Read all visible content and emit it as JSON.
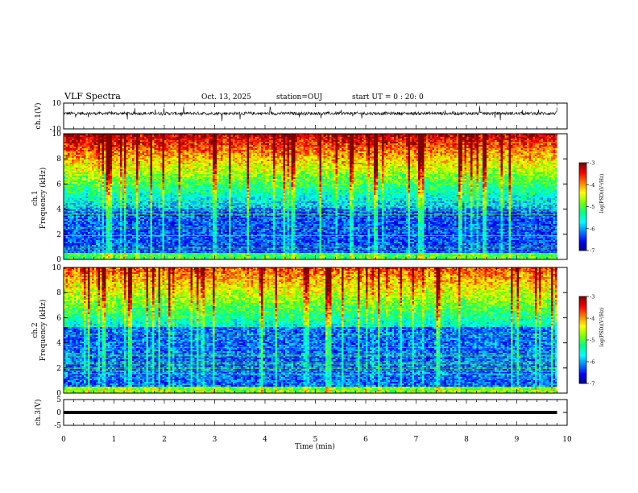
{
  "header": {
    "title": "VLF Spectra",
    "date": "Oct. 13, 2025",
    "station": "station=OUJ",
    "start_ut": "start UT =  0 : 20: 0"
  },
  "chart_data": [
    {
      "type": "line",
      "panel": "ch1-waveform",
      "ylabel": "ch.1(V)",
      "ylim": [
        -10,
        10
      ],
      "yticks": [
        "10",
        "-10"
      ],
      "xlim": [
        0,
        10
      ],
      "baseline": 2,
      "amplitude_spread": 2.5
    },
    {
      "type": "heatmap",
      "panel": "ch1-spectrogram",
      "ylabel": "ch.1\nFrequency (kHz)",
      "ylim": [
        0,
        10
      ],
      "yticks": [
        "0",
        "2",
        "4",
        "6",
        "8",
        "10"
      ],
      "xlim": [
        0,
        10
      ],
      "colorbar_label": "log(PSD)(V²/Hz)",
      "colorbar_range": [
        -7,
        -3
      ],
      "colorbar_ticks": [
        "-3",
        "-4",
        "-5",
        "-6",
        "-7"
      ],
      "description_bands": [
        {
          "freq_khz": [
            8,
            10
          ],
          "log_psd": -3.3
        },
        {
          "freq_khz": [
            6,
            8
          ],
          "log_psd": -4.2
        },
        {
          "freq_khz": [
            4,
            6
          ],
          "log_psd": -5.3
        },
        {
          "freq_khz": [
            0.5,
            4
          ],
          "log_psd": -6.3
        },
        {
          "freq_khz": [
            0,
            0.5
          ],
          "log_psd": -5.0
        }
      ]
    },
    {
      "type": "heatmap",
      "panel": "ch2-spectrogram",
      "ylabel": "ch.2\nFrequency (kHz)",
      "ylim": [
        0,
        10
      ],
      "yticks": [
        "0",
        "2",
        "4",
        "6",
        "8",
        "10"
      ],
      "xlim": [
        0,
        10
      ],
      "colorbar_label": "log(PSD)(V²/Hz)",
      "colorbar_range": [
        -7,
        -3
      ],
      "colorbar_ticks": [
        "-3",
        "-4",
        "-5",
        "-6",
        "-7"
      ],
      "description_bands": [
        {
          "freq_khz": [
            7,
            10
          ],
          "log_psd": -3.8
        },
        {
          "freq_khz": [
            5.3,
            7
          ],
          "log_psd": -4.6
        },
        {
          "freq_khz": [
            2.2,
            5.3
          ],
          "log_psd": -5.0,
          "time_min": [
            0.6,
            7.9
          ]
        },
        {
          "freq_khz": [
            0.5,
            5.3
          ],
          "log_psd": -6.2
        },
        {
          "freq_khz": [
            0,
            0.5
          ],
          "log_psd": -4.8
        }
      ]
    },
    {
      "type": "line",
      "panel": "ch3-waveform",
      "ylabel": "ch.3(V)",
      "ylim": [
        -5,
        5
      ],
      "yticks": [
        "5",
        "0",
        "-5"
      ],
      "xlim": [
        0,
        10
      ],
      "value": 0.0
    }
  ],
  "x_axis": {
    "label": "Time (min)",
    "range": [
      0,
      10
    ],
    "ticks": [
      "0",
      "1",
      "2",
      "3",
      "4",
      "5",
      "6",
      "7",
      "8",
      "9",
      "10"
    ]
  },
  "colors": {
    "colormap": [
      "#00007f",
      "#0000ff",
      "#0080ff",
      "#00ffff",
      "#00ff80",
      "#80ff00",
      "#ffff00",
      "#ff8000",
      "#ff0000",
      "#7f0000"
    ]
  }
}
